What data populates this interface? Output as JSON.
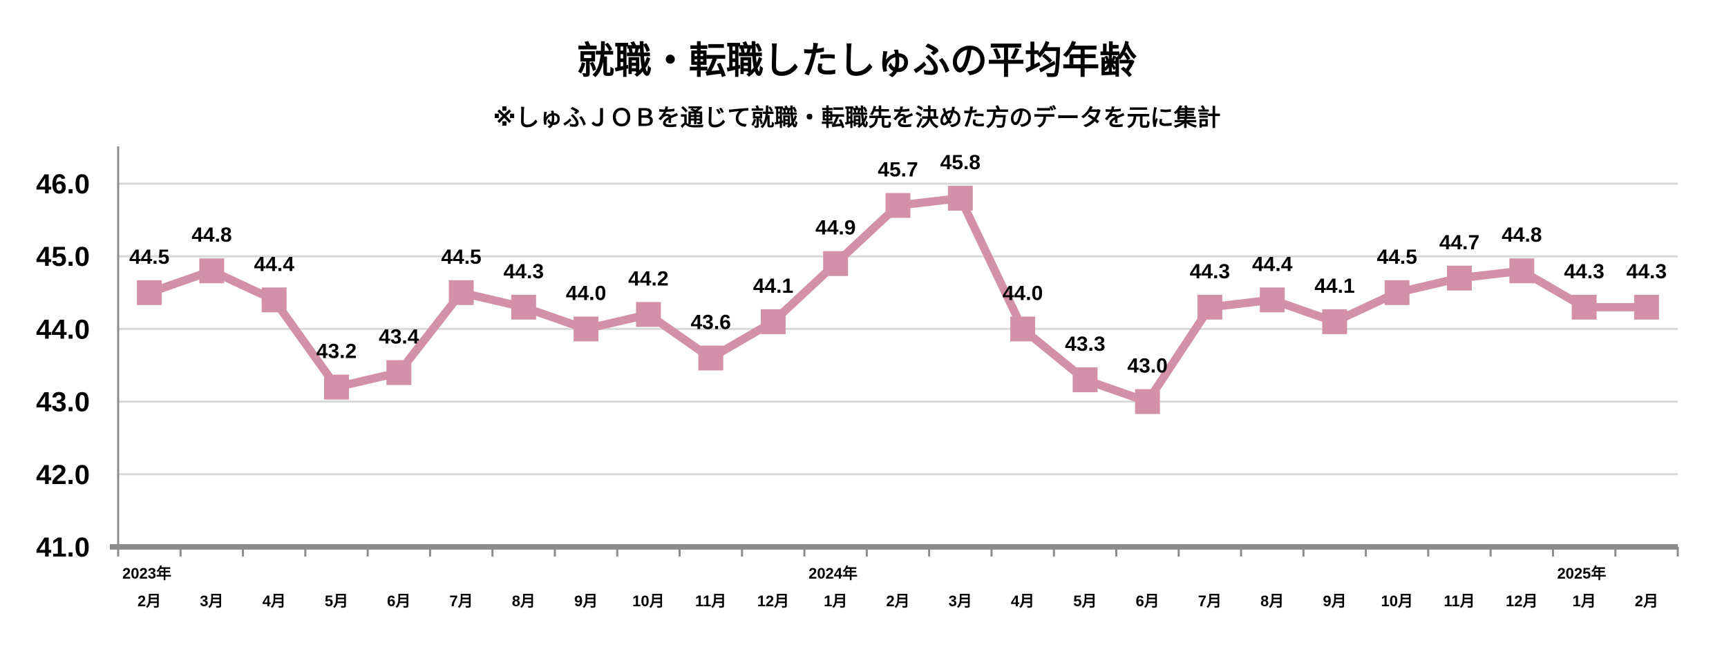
{
  "chart_data": {
    "type": "line",
    "title": "就職・転職したしゅふの平均年齢",
    "subtitle": "※しゅふＪＯＢを通じて就職・転職先を決めた方のデータを元に集計",
    "xlabel": "",
    "ylabel": "",
    "ylim": [
      41.0,
      46.0
    ],
    "yticks": [
      "41.0",
      "42.0",
      "43.0",
      "44.0",
      "45.0",
      "46.0"
    ],
    "grid": true,
    "legend": "none",
    "line_color": "#d291a8",
    "categories": [
      "2月",
      "3月",
      "4月",
      "5月",
      "6月",
      "7月",
      "8月",
      "9月",
      "10月",
      "11月",
      "12月",
      "1月",
      "2月",
      "3月",
      "4月",
      "5月",
      "6月",
      "7月",
      "8月",
      "9月",
      "10月",
      "11月",
      "12月",
      "1月",
      "2月"
    ],
    "year_labels": [
      {
        "index": 0,
        "label": "2023年"
      },
      {
        "index": 11,
        "label": "2024年"
      },
      {
        "index": 23,
        "label": "2025年"
      }
    ],
    "series": [
      {
        "name": "平均年齢",
        "values": [
          44.5,
          44.8,
          44.4,
          43.2,
          43.4,
          44.5,
          44.3,
          44.0,
          44.2,
          43.6,
          44.1,
          44.9,
          45.7,
          45.8,
          44.0,
          43.3,
          43.0,
          44.3,
          44.4,
          44.1,
          44.5,
          44.7,
          44.8,
          44.3,
          44.3
        ],
        "labels": [
          "44.5",
          "44.8",
          "44.4",
          "43.2",
          "43.4",
          "44.5",
          "44.3",
          "44.0",
          "44.2",
          "43.6",
          "44.1",
          "44.9",
          "45.7",
          "45.8",
          "44.0",
          "43.3",
          "43.0",
          "44.3",
          "44.4",
          "44.1",
          "44.5",
          "44.7",
          "44.8",
          "44.3",
          "44.3"
        ]
      }
    ]
  }
}
